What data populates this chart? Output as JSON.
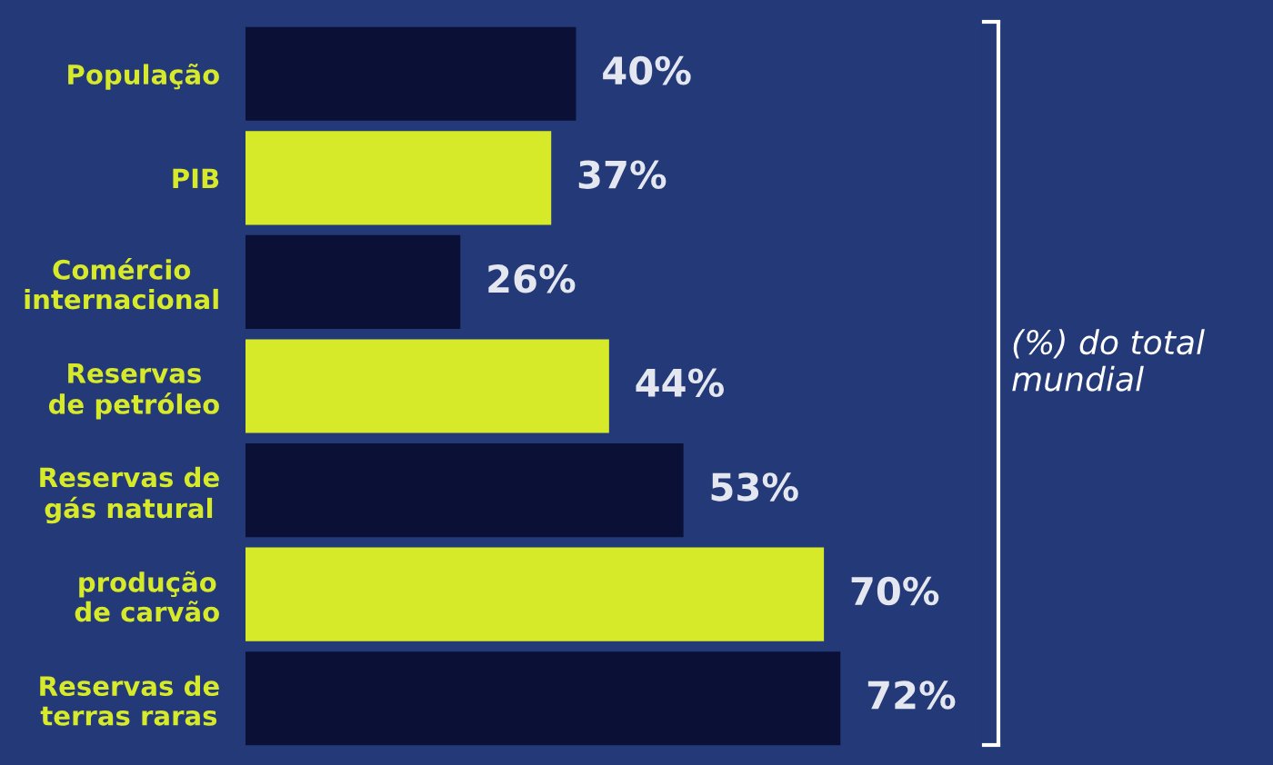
{
  "chart_data": {
    "type": "bar",
    "orientation": "horizontal",
    "categories": [
      "População",
      "PIB",
      "Comércio\ninternacional",
      "Reservas\nde petróleo",
      "Reservas de\ngás natural",
      "produção\nde carvão",
      "Reservas de\nterras raras"
    ],
    "values": [
      40,
      37,
      26,
      44,
      53,
      70,
      72
    ],
    "colors": [
      "#0b1136",
      "#d7ea2a",
      "#0b1136",
      "#d7ea2a",
      "#0b1136",
      "#d7ea2a",
      "#0b1136"
    ],
    "value_labels": [
      "40%",
      "37%",
      "26%",
      "44%",
      "53%",
      "70%",
      "72%"
    ],
    "annotations": [
      "(%) do total\nmundial"
    ],
    "grid": false,
    "legend": false
  }
}
